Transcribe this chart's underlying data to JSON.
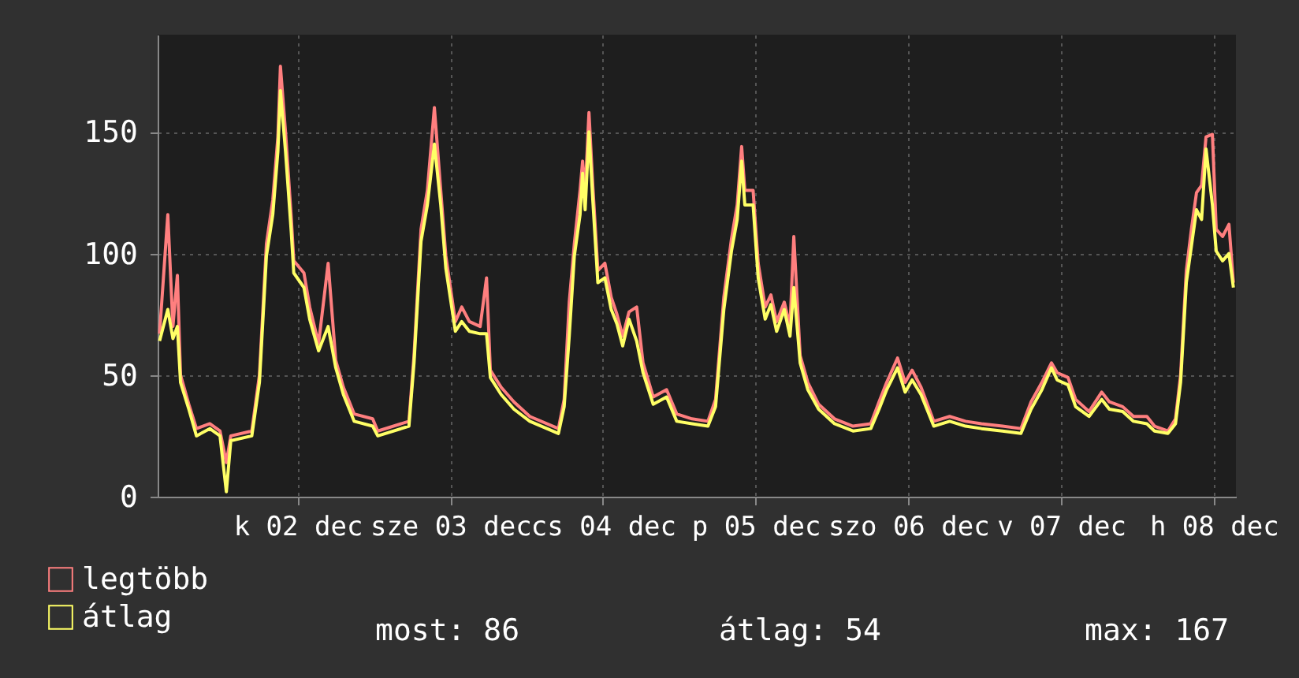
{
  "chart_data": {
    "type": "line",
    "xlim": [
      "--12-01T14:00",
      "--12-08T15:30"
    ],
    "ylim": [
      0,
      190
    ],
    "yticks": [
      0,
      50,
      100,
      150
    ],
    "xticks": [
      {
        "value": "--12-02T12:00",
        "label": "k 02 dec"
      },
      {
        "value": "--12-03T12:00",
        "label": "sze 03 dec"
      },
      {
        "value": "--12-04T12:00",
        "label": "cs 04 dec"
      },
      {
        "value": "--12-05T12:00",
        "label": "p 05 dec"
      },
      {
        "value": "--12-06T12:00",
        "label": "szo 06 dec"
      },
      {
        "value": "--12-07T12:00",
        "label": "v 07 dec"
      },
      {
        "value": "--12-08T12:00",
        "label": "h 08 dec"
      }
    ],
    "x": [
      "--12-01T14:18",
      "--12-01T15:36",
      "--12-01T16:24",
      "--12-01T17:06",
      "--12-01T17:36",
      "--12-01T18:54",
      "--12-01T20:06",
      "--12-01T22:12",
      "--12-01T23:48",
      "--12-02T00:48",
      "--12-02T01:30",
      "--12-02T04:48",
      "--12-02T06:00",
      "--12-02T07:06",
      "--12-02T08:06",
      "--12-02T08:54",
      "--12-02T09:18",
      "--12-02T10:06",
      "--12-02T11:00",
      "--12-02T11:24",
      "--12-02T13:00",
      "--12-02T13:54",
      "--12-02T15:18",
      "--12-02T16:48",
      "--12-02T18:00",
      "--12-02T19:12",
      "--12-02T20:54",
      "--12-02T23:48",
      "--12-03T00:36",
      "--12-03T05:30",
      "--12-03T06:18",
      "--12-03T07:24",
      "--12-03T08:24",
      "--12-03T09:30",
      "--12-03T10:30",
      "--12-03T11:18",
      "--12-03T12:48",
      "--12-03T13:48",
      "--12-03T15:00",
      "--12-03T16:42",
      "--12-03T17:42",
      "--12-03T18:18",
      "--12-03T20:00",
      "--12-03T22:00",
      "--12-04T00:30",
      "--12-04T05:00",
      "--12-04T05:54",
      "--12-04T06:42",
      "--12-04T07:30",
      "--12-04T08:24",
      "--12-04T08:48",
      "--12-04T09:12",
      "--12-04T09:48",
      "--12-04T10:24",
      "--12-04T11:12",
      "--12-04T12:18",
      "--12-04T13:18",
      "--12-04T14:12",
      "--12-04T15:06",
      "--12-04T16:06",
      "--12-04T17:18",
      "--12-04T18:18",
      "--12-04T19:54",
      "--12-04T22:00",
      "--12-04T23:36",
      "--12-05T02:00",
      "--12-05T04:30",
      "--12-05T05:42",
      "--12-05T07:00",
      "--12-05T08:12",
      "--12-05T09:06",
      "--12-05T09:48",
      "--12-05T10:18",
      "--12-05T11:36",
      "--12-05T12:24",
      "--12-05T13:30",
      "--12-05T14:24",
      "--12-05T15:18",
      "--12-05T16:30",
      "--12-05T17:24",
      "--12-05T18:00",
      "--12-05T19:00",
      "--12-05T20:12",
      "--12-05T21:54",
      "--12-06T00:24",
      "--12-06T03:18",
      "--12-06T06:06",
      "--12-06T07:24",
      "--12-06T08:36",
      "--12-06T10:18",
      "--12-06T11:30",
      "--12-06T12:36",
      "--12-06T14:00",
      "--12-06T16:00",
      "--12-06T18:30",
      "--12-06T21:00",
      "--12-06T23:30",
      "--12-07T02:48",
      "--12-07T05:42",
      "--12-07T07:18",
      "--12-07T09:00",
      "--12-07T10:30",
      "--12-07T11:24",
      "--12-07T13:06",
      "--12-07T14:18",
      "--12-07T16:24",
      "--12-07T18:24",
      "--12-07T19:36",
      "--12-07T21:42",
      "--12-07T23:24",
      "--12-08T01:30",
      "--12-08T02:42",
      "--12-08T04:48",
      "--12-08T06:00",
      "--12-08T06:48",
      "--12-08T07:42",
      "--12-08T08:30",
      "--12-08T09:18",
      "--12-08T10:06",
      "--12-08T10:48",
      "--12-08T11:48",
      "--12-08T12:24",
      "--12-08T13:24",
      "--12-08T14:24",
      "--12-08T15:06"
    ],
    "series": [
      {
        "name": "legtöbb",
        "color": "#ff7f7f",
        "values": [
          67,
          116,
          70,
          91,
          50,
          38,
          28,
          30,
          27,
          14,
          25,
          27,
          50,
          104,
          122,
          148,
          177,
          150,
          115,
          97,
          92,
          78,
          63,
          96,
          56,
          45,
          34,
          32,
          27,
          31,
          58,
          110,
          126,
          160,
          126,
          99,
          72,
          78,
          72,
          70,
          90,
          52,
          45,
          39,
          33,
          28,
          40,
          80,
          104,
          126,
          138,
          125,
          158,
          128,
          93,
          96,
          82,
          75,
          66,
          76,
          78,
          55,
          41,
          44,
          34,
          32,
          31,
          40,
          82,
          106,
          120,
          144,
          126,
          126,
          96,
          78,
          83,
          72,
          80,
          70,
          107,
          58,
          47,
          38,
          32,
          29,
          30,
          39,
          47,
          57,
          47,
          52,
          45,
          31,
          33,
          31,
          30,
          29,
          28,
          39,
          47,
          55,
          51,
          49,
          40,
          35,
          43,
          39,
          37,
          33,
          33,
          29,
          27,
          32,
          50,
          93,
          110,
          125,
          128,
          148,
          149,
          110,
          107,
          112,
          88
        ]
      },
      {
        "name": "átlag",
        "color": "#ffff66",
        "values": [
          64,
          77,
          65,
          70,
          47,
          36,
          25,
          28,
          25,
          2,
          23,
          25,
          47,
          99,
          116,
          142,
          167,
          142,
          109,
          92,
          86,
          73,
          60,
          70,
          53,
          42,
          31,
          29,
          25,
          29,
          55,
          105,
          120,
          145,
          120,
          94,
          68,
          72,
          68,
          67,
          67,
          49,
          42,
          36,
          31,
          26,
          37,
          66,
          99,
          116,
          133,
          118,
          150,
          122,
          88,
          90,
          77,
          71,
          62,
          73,
          64,
          51,
          38,
          41,
          31,
          30,
          29,
          37,
          77,
          101,
          114,
          138,
          120,
          120,
          90,
          73,
          79,
          68,
          77,
          66,
          86,
          55,
          44,
          36,
          30,
          27,
          28,
          36,
          44,
          53,
          43,
          48,
          42,
          29,
          31,
          29,
          28,
          27,
          26,
          36,
          44,
          53,
          48,
          46,
          37,
          33,
          40,
          36,
          35,
          31,
          30,
          27,
          26,
          30,
          47,
          88,
          103,
          118,
          114,
          143,
          120,
          101,
          97,
          100,
          86
        ]
      }
    ],
    "grid": true,
    "legend": "bottom left",
    "annotations": [
      "most: 86",
      "átlag: 54",
      "max: 167"
    ]
  }
}
